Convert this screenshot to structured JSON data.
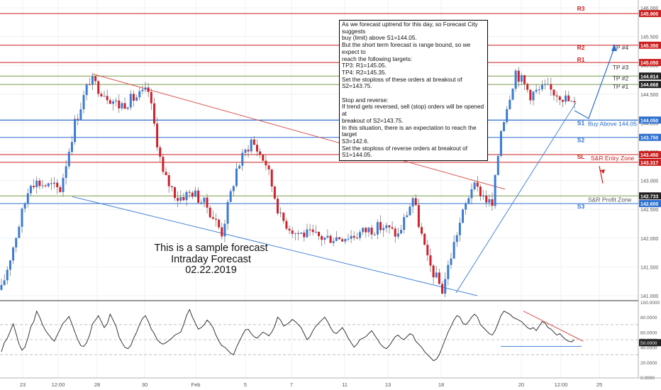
{
  "chart_data": [
    {
      "type": "candlestick",
      "xlabels": [
        "23",
        "12:00",
        "28",
        "30",
        "Feb",
        "5",
        "7",
        "11",
        "13",
        "18",
        "20",
        "12:00",
        "25"
      ],
      "ylim": [
        140.95,
        146.05
      ],
      "yticks": [
        "146.000",
        "145.500",
        "145.000",
        "144.500",
        "144.000",
        "143.500",
        "143.000",
        "142.500",
        "142.000",
        "141.500",
        "141.000"
      ],
      "yticks_values": [
        146.0,
        145.5,
        145.0,
        144.5,
        144.0,
        143.5,
        143.0,
        142.5,
        142.0,
        141.5,
        141.0
      ],
      "price_keypoints": {
        "x_index": [
          0,
          10,
          20,
          25,
          30,
          40,
          50,
          55,
          60,
          65,
          70,
          75,
          80,
          85,
          90,
          95,
          100,
          110,
          120,
          125,
          130,
          135,
          140,
          145,
          150,
          155,
          160,
          163,
          167,
          170,
          175,
          180,
          185,
          190,
          195
        ],
        "close": [
          141.1,
          143.0,
          142.85,
          144.0,
          144.75,
          144.3,
          144.55,
          143.1,
          142.7,
          142.8,
          142.55,
          142.1,
          143.2,
          143.7,
          143.3,
          142.35,
          142.1,
          142.0,
          142.05,
          142.15,
          142.2,
          142.05,
          142.7,
          141.6,
          141.1,
          142.1,
          142.9,
          142.8,
          142.55,
          143.9,
          144.9,
          144.5,
          144.6,
          144.5,
          144.3
        ]
      },
      "levels": [
        {
          "label": "R3",
          "value": 145.9,
          "color": "#cc1f1f"
        },
        {
          "label": "R2",
          "value": 145.35,
          "color": "#cc1f1f"
        },
        {
          "label": "R1",
          "value": 145.05,
          "color": "#cc1f1f"
        },
        {
          "label": "TP #4",
          "value": 145.35,
          "color": "#7a9a4a"
        },
        {
          "label": "TP #3",
          "value": 145.05,
          "color": "#7a9a4a"
        },
        {
          "label": "TP #2",
          "value": 144.814,
          "color": "#7a9a4a"
        },
        {
          "label": "TP #1",
          "value": 144.668,
          "color": "#7a9a4a"
        },
        {
          "label": "S1",
          "value": 144.05,
          "color": "#2d6fcf"
        },
        {
          "label": "S2",
          "value": 143.75,
          "color": "#2d6fcf"
        },
        {
          "label": "SL",
          "value": 143.45,
          "color": "#cc1f1f"
        },
        {
          "label": "S&R Entry Zone",
          "value": 143.317,
          "color": "#cc1f1f"
        },
        {
          "label": "S&R Profit Zone",
          "value": 142.733,
          "color": "#7a9a4a"
        },
        {
          "label": "S3",
          "value": 142.6,
          "color": "#2d6fcf"
        }
      ],
      "price_tags": [
        {
          "text": "145.900",
          "value": 145.9,
          "color": "#cc1f1f"
        },
        {
          "text": "145.350",
          "value": 145.35,
          "color": "#cc1f1f"
        },
        {
          "text": "145.050",
          "value": 145.05,
          "color": "#cc1f1f"
        },
        {
          "text": "144.814",
          "value": 144.814,
          "color": "#222222"
        },
        {
          "text": "144.668",
          "value": 144.668,
          "color": "#222222"
        },
        {
          "text": "144.050",
          "value": 144.05,
          "color": "#2d6fcf"
        },
        {
          "text": "143.750",
          "value": 143.75,
          "color": "#2d6fcf"
        },
        {
          "text": "143.450",
          "value": 143.45,
          "color": "#cc1f1f"
        },
        {
          "text": "143.317",
          "value": 143.317,
          "color": "#cc1f1f"
        },
        {
          "text": "142.733",
          "value": 142.733,
          "color": "#222222"
        },
        {
          "text": "142.600",
          "value": 142.6,
          "color": "#2d6fcf"
        }
      ],
      "annotations": [
        "Buy Above 144.05",
        "S&R Entry Zone",
        "S&R Profit Zone"
      ],
      "colors": {
        "up": "#3a7bd5",
        "down": "#d0202a",
        "wick": "#555555"
      }
    },
    {
      "type": "line",
      "ylim": [
        0,
        100
      ],
      "yticks": [
        "100.0000",
        "80.0000",
        "60.0000",
        "50.0000",
        "40.0000",
        "20.0000",
        "0.0000"
      ],
      "yticks_values": [
        100,
        80,
        60,
        50,
        40,
        20,
        0
      ],
      "dashed_levels": [
        70,
        50,
        30
      ],
      "current_value_label": "50.0000",
      "values": [
        34,
        46,
        52,
        61,
        71,
        58,
        44,
        36,
        40,
        52,
        67,
        74,
        88,
        80,
        70,
        62,
        57,
        52,
        48,
        56,
        64,
        72,
        76,
        81,
        71,
        60,
        50,
        42,
        41,
        46,
        56,
        71,
        76,
        82,
        74,
        66,
        71,
        84,
        76,
        68,
        54,
        46,
        40,
        38,
        42,
        52,
        60,
        70,
        78,
        82,
        74,
        64,
        58,
        50,
        46,
        44,
        46,
        49,
        52,
        56,
        58,
        60,
        70,
        82,
        90,
        80,
        72,
        64,
        66,
        70,
        76,
        72,
        66,
        56,
        48,
        42,
        40,
        36,
        32,
        30,
        40,
        48,
        56,
        63,
        64,
        58,
        54,
        52,
        56,
        60,
        58,
        55,
        60,
        68,
        80,
        76,
        68,
        70,
        73,
        77,
        74,
        70,
        66,
        58,
        50,
        54,
        62,
        68,
        72,
        76,
        80,
        74,
        66,
        60,
        58,
        62,
        66,
        60,
        52,
        46,
        40,
        44,
        50,
        52,
        54,
        58,
        62,
        56,
        50,
        44,
        40,
        38,
        42,
        48,
        54,
        56,
        52,
        50,
        54,
        58,
        56,
        48,
        44,
        40,
        34,
        30,
        26,
        22,
        24,
        30,
        40,
        50,
        60,
        68,
        76,
        82,
        80,
        72,
        70,
        74,
        80,
        84,
        80,
        70,
        66,
        62,
        58,
        56,
        62,
        72,
        82,
        88,
        86,
        84,
        80,
        78,
        76,
        74,
        70,
        66,
        64,
        66,
        62,
        68,
        74,
        72,
        66,
        64,
        60,
        56,
        58,
        54,
        50,
        48,
        47,
        50
      ],
      "trendlines": [
        "falling resistance",
        "flat support"
      ]
    }
  ],
  "note": {
    "lines": [
      "As we forecast uptrend for this day, so Forecast City suggests",
      "buy (limit) above S1=144.05.",
      "But the short term forecast is range bound, so we expect to",
      "reach the following targets:",
      "TP3: R1=145.05.",
      "TP4: R2=145.35.",
      "Set the stoploss of these orders at breakout of S2=143.75.",
      "",
      "Stop and reverse:",
      "If trend gets reversed, sell (stop) orders will be opened at",
      "breakout of S2=143.75.",
      "In this situation, there is an expectation to reach the target",
      "S3=142.6.",
      "Set the stoploss of reverse orders at breakout of S1=144.05."
    ]
  },
  "caption": {
    "line1": "This is a sample forecast",
    "line2": "Intraday Forecast",
    "line3": "02.22.2019"
  }
}
